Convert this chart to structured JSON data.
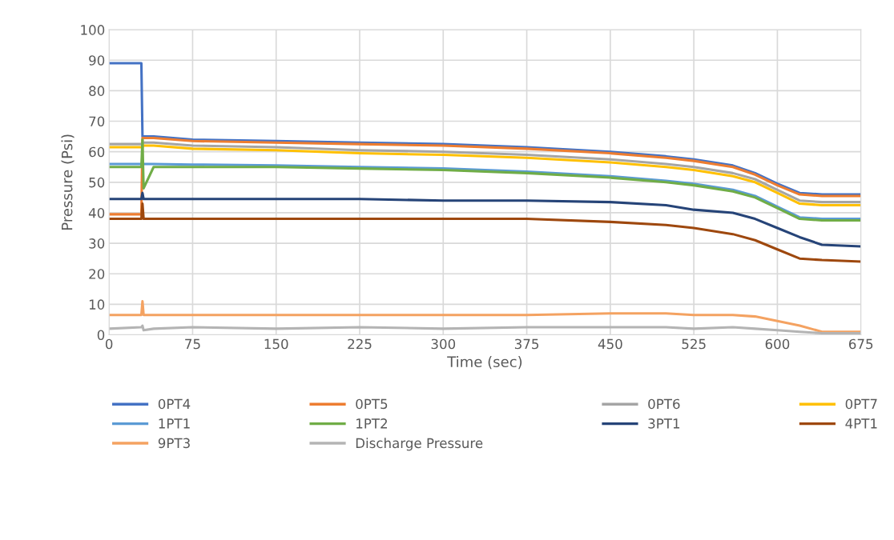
{
  "chart_data": {
    "type": "line",
    "xlabel": "Time (sec)",
    "ylabel": "Pressure (Psi)",
    "x": [
      0,
      29,
      30,
      31,
      40,
      75,
      150,
      225,
      300,
      375,
      450,
      500,
      525,
      560,
      580,
      600,
      620,
      640,
      675
    ],
    "xlim": [
      0,
      675
    ],
    "xticks": [
      0,
      75,
      150,
      225,
      300,
      375,
      450,
      525,
      600,
      675
    ],
    "ylim": [
      0,
      100
    ],
    "yticks": [
      0,
      10,
      20,
      30,
      40,
      50,
      60,
      70,
      80,
      90,
      100
    ],
    "grid": true,
    "legend": "bottom",
    "marker": "none",
    "line_style": "solid",
    "series": [
      {
        "name": "0PT4",
        "color": "#4472c4",
        "values": [
          89,
          89,
          65,
          65,
          65,
          64,
          63.5,
          63,
          62.5,
          61.5,
          60,
          58.5,
          57.5,
          55.5,
          53,
          49.5,
          46.5,
          46,
          46
        ]
      },
      {
        "name": "0PT5",
        "color": "#ed7d31",
        "values": [
          39.5,
          39.5,
          64.5,
          64.5,
          64.5,
          63.5,
          63,
          62.5,
          62,
          61,
          59.5,
          58,
          57,
          55,
          52.5,
          49,
          46,
          45.5,
          45.5
        ]
      },
      {
        "name": "0PT6",
        "color": "#a5a5a5",
        "values": [
          62.5,
          62.5,
          62.5,
          63,
          63,
          62,
          61.5,
          60.5,
          60,
          59,
          57.5,
          56,
          55,
          53,
          51,
          47.5,
          44,
          43.5,
          43.5
        ]
      },
      {
        "name": "0PT7",
        "color": "#ffc000",
        "values": [
          61.5,
          61.5,
          61.5,
          62,
          62,
          61,
          60.5,
          59.5,
          59,
          58,
          56.5,
          55,
          54,
          52,
          50,
          46.5,
          43,
          42.5,
          42.5
        ]
      },
      {
        "name": "1PT1",
        "color": "#5b9bd5",
        "values": [
          56,
          56,
          56,
          56,
          56,
          55.8,
          55.5,
          55,
          54.5,
          53.5,
          52,
          50.5,
          49.5,
          47.5,
          45.5,
          42,
          38.5,
          38,
          38
        ]
      },
      {
        "name": "1PT2",
        "color": "#70ad47",
        "values": [
          55,
          55,
          64,
          48,
          55,
          55,
          55,
          54.5,
          54,
          53,
          51.5,
          50,
          49,
          47,
          45,
          41.5,
          38,
          37.5,
          37.5
        ]
      },
      {
        "name": "3PT1",
        "color": "#264478",
        "values": [
          44.5,
          44.5,
          46.5,
          44.5,
          44.5,
          44.5,
          44.5,
          44.5,
          44,
          44,
          43.5,
          42.5,
          41,
          40,
          38,
          35,
          32,
          29.5,
          29
        ]
      },
      {
        "name": "4PT1",
        "color": "#9e480e",
        "values": [
          38,
          38,
          43,
          38,
          38,
          38,
          38,
          38,
          38,
          38,
          37,
          36,
          35,
          33,
          31,
          28,
          25,
          24.5,
          24
        ]
      },
      {
        "name": "9PT3",
        "color": "#f4a261",
        "values": [
          6.5,
          6.5,
          11,
          6.5,
          6.5,
          6.5,
          6.5,
          6.5,
          6.5,
          6.5,
          7,
          7,
          6.5,
          6.5,
          6,
          4.5,
          3,
          1,
          1
        ]
      },
      {
        "name": "Discharge Pressure",
        "color": "#b4b4b4",
        "values": [
          2,
          2.5,
          3,
          1.5,
          2,
          2.5,
          2,
          2.5,
          2,
          2.5,
          2.5,
          2.5,
          2,
          2.5,
          2,
          1.5,
          1,
          0.5,
          0.5
        ]
      }
    ]
  }
}
